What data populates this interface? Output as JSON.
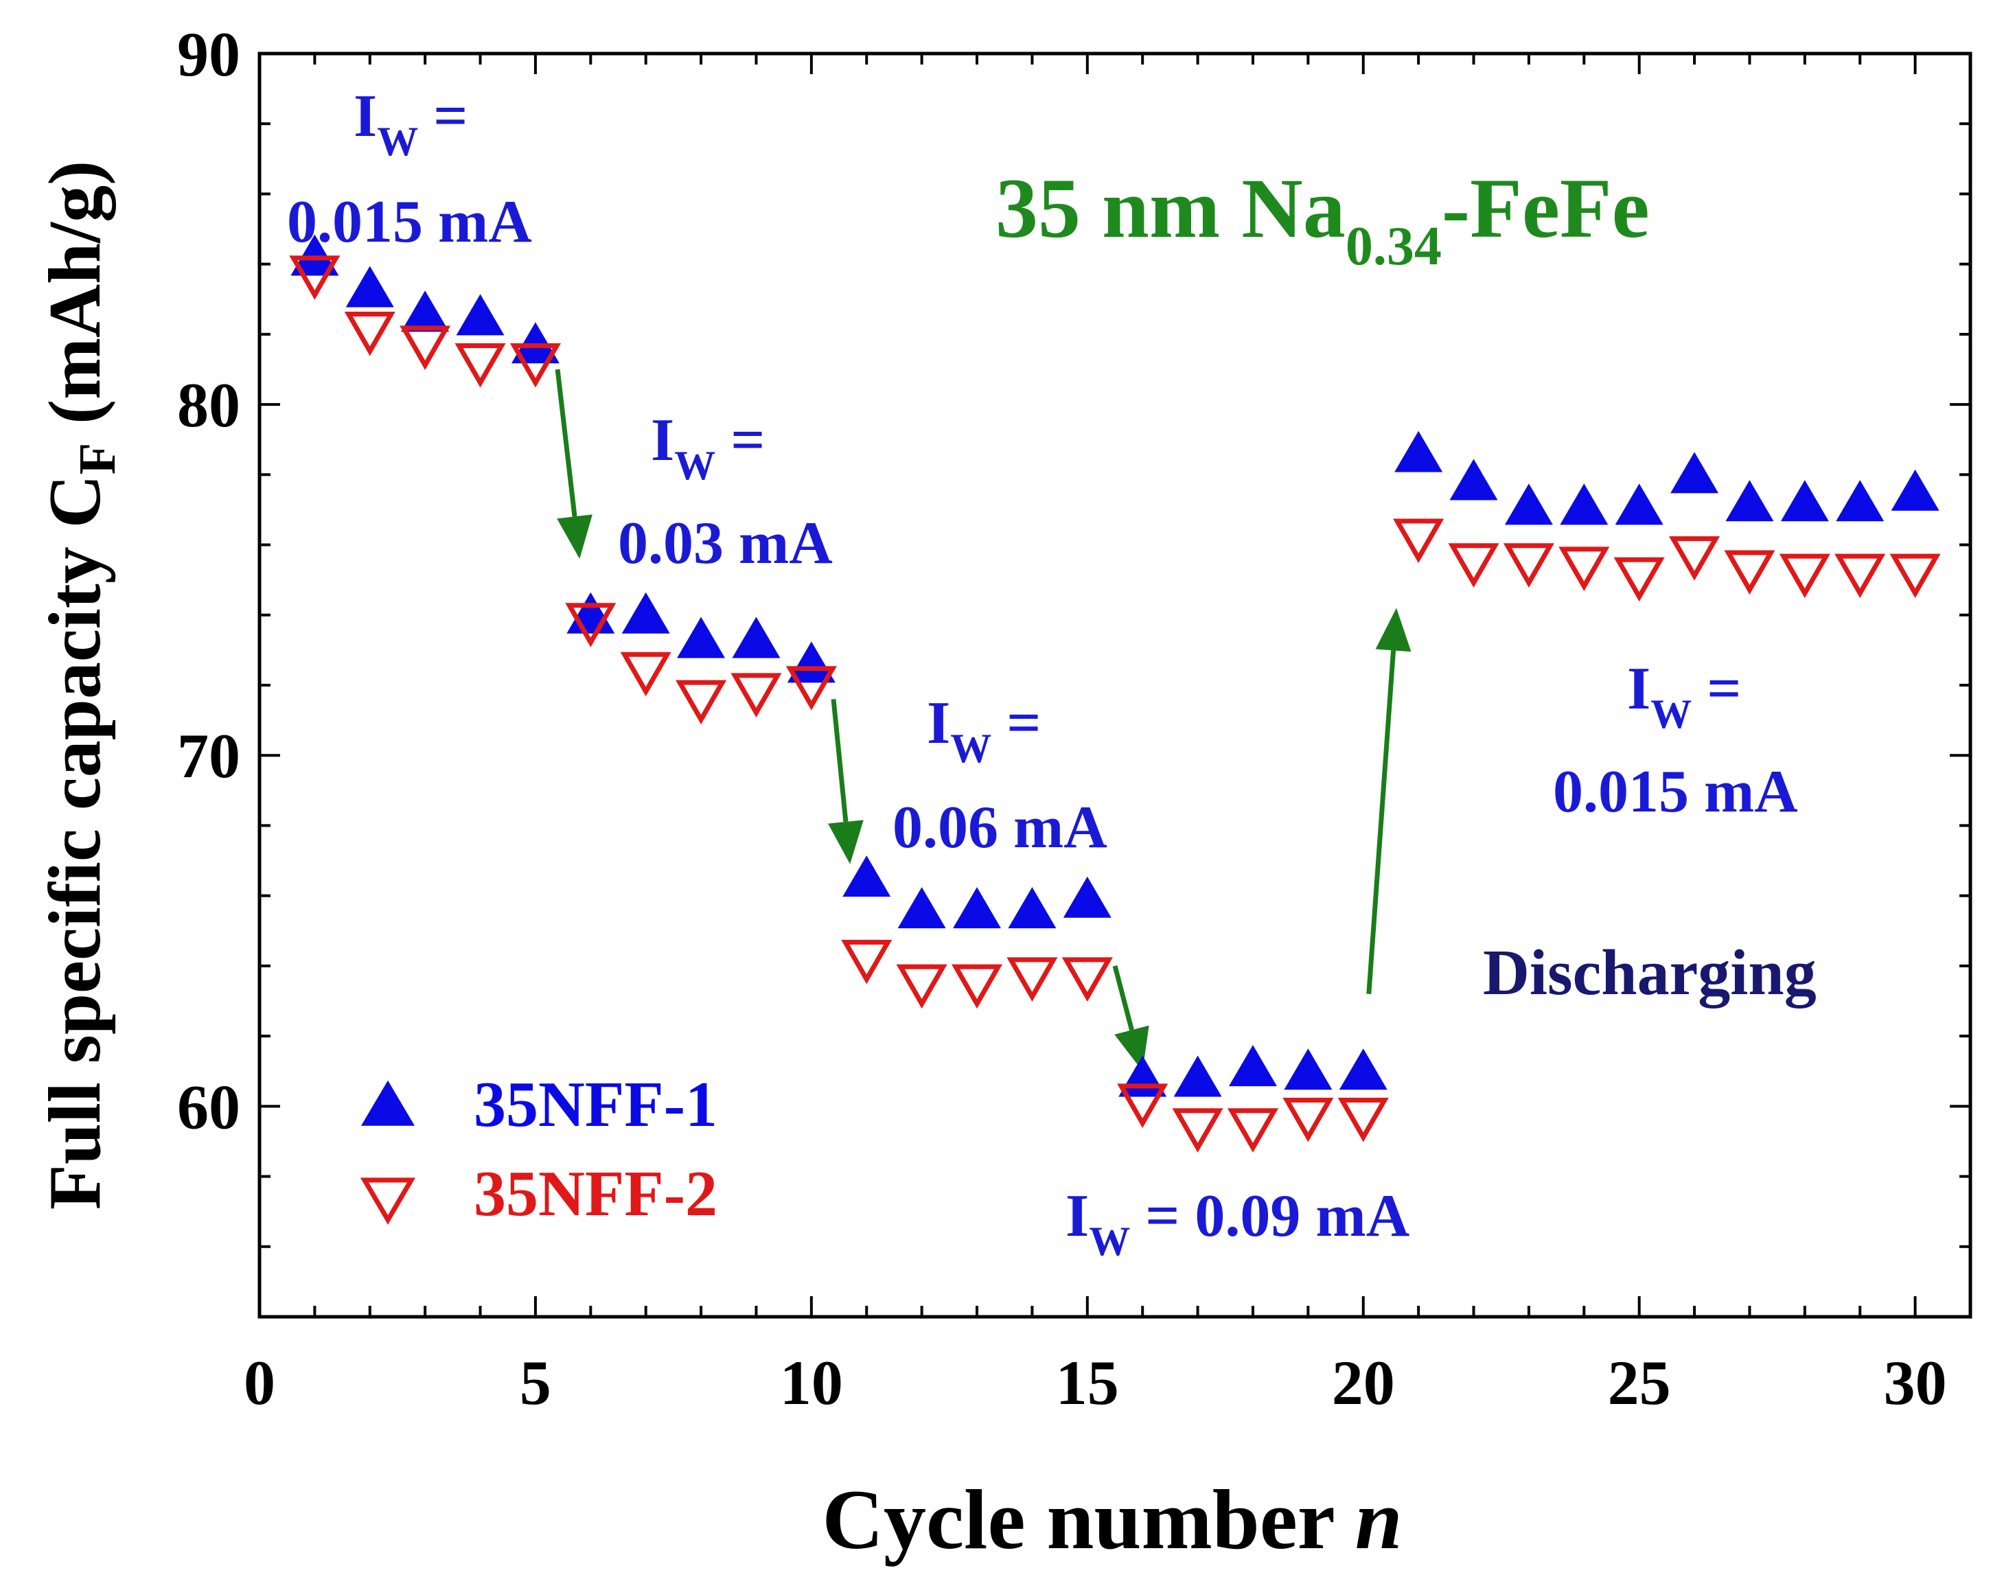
{
  "chart_data": {
    "type": "scatter",
    "title": "35 nm Na0.34-FeFe",
    "title_parts": {
      "main": "35 nm Na",
      "sub": "0.34",
      "tail": "-FeFe"
    },
    "xlabel": "Cycle number ",
    "xlabel_var": "n",
    "ylabel": "Full specific capacity C",
    "ylabel_sub": "F",
    "ylabel_unit": " (mAh/g)",
    "xlim": [
      0,
      31
    ],
    "ylim": [
      54,
      90
    ],
    "xticks": [
      0,
      5,
      10,
      15,
      20,
      25,
      30
    ],
    "yticks": [
      60,
      70,
      80,
      90
    ],
    "mode_label": "Discharging",
    "x": [
      1,
      2,
      3,
      4,
      5,
      6,
      7,
      8,
      9,
      10,
      11,
      12,
      13,
      14,
      15,
      16,
      17,
      18,
      19,
      20,
      21,
      22,
      23,
      24,
      25,
      26,
      27,
      28,
      29,
      30
    ],
    "series": [
      {
        "name": "35NFF-1",
        "marker": "triangle-up-filled",
        "color": "#0a0ae6",
        "values": [
          84.2,
          83.3,
          82.6,
          82.5,
          81.7,
          74.0,
          74.0,
          73.3,
          73.3,
          72.6,
          66.5,
          65.6,
          65.6,
          65.6,
          65.9,
          60.8,
          60.8,
          61.1,
          61.0,
          61.0,
          78.6,
          77.8,
          77.1,
          77.1,
          77.1,
          78.0,
          77.2,
          77.2,
          77.2,
          77.5
        ]
      },
      {
        "name": "35NFF-2",
        "marker": "triangle-down-open",
        "color": "#e01818",
        "values": [
          83.7,
          82.1,
          81.7,
          81.2,
          81.2,
          73.8,
          72.4,
          71.6,
          71.8,
          72.0,
          64.2,
          63.5,
          63.5,
          63.7,
          63.7,
          60.1,
          59.4,
          59.4,
          59.7,
          59.7,
          76.2,
          75.5,
          75.5,
          75.4,
          75.1,
          75.7,
          75.3,
          75.2,
          75.2,
          75.2
        ]
      }
    ],
    "annotations": [
      {
        "prefix": "I",
        "sub": "W",
        "eq": " =",
        "value": "0.015 mA"
      },
      {
        "prefix": "I",
        "sub": "W",
        "eq": " =",
        "value": "0.03 mA"
      },
      {
        "prefix": "I",
        "sub": "W",
        "eq": " =",
        "value": "0.06 mA"
      },
      {
        "prefix": "I",
        "sub": "W",
        "eq": " = 0.09 mA",
        "value": ""
      },
      {
        "prefix": "I",
        "sub": "W",
        "eq": " =",
        "value": "0.015 mA"
      }
    ],
    "arrows": [
      {
        "from": [
          5.4,
          81.0
        ],
        "to": [
          5.8,
          75.6
        ]
      },
      {
        "from": [
          10.4,
          71.6
        ],
        "to": [
          10.7,
          66.9
        ]
      },
      {
        "from": [
          15.5,
          64.0
        ],
        "to": [
          16.0,
          61.0
        ]
      },
      {
        "from": [
          20.1,
          63.2
        ],
        "to": [
          20.6,
          74.2
        ]
      }
    ]
  }
}
